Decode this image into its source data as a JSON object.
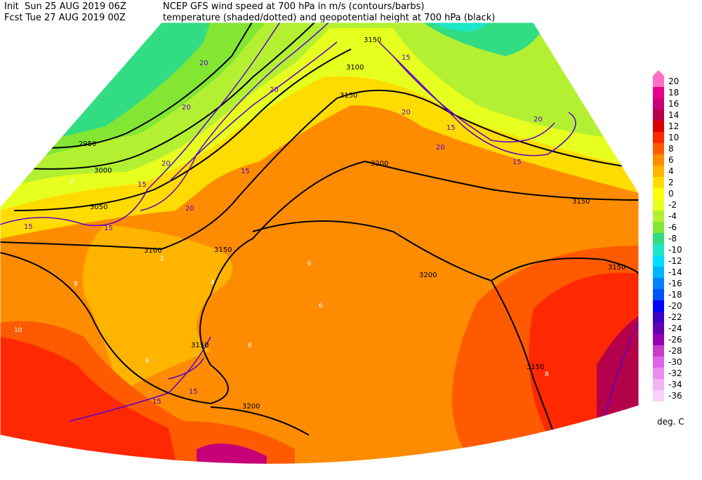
{
  "header": {
    "init": "Init  Sun 25 AUG 2019 06Z",
    "fcst": "Fcst Tue 27 AUG 2019 00Z",
    "line1": "NCEP GFS wind speed at 700 hPa in m/s (contours/barbs)",
    "line2": "temperature (shaded/dotted) and geopotential height at 700 hPa (black)"
  },
  "colorbar": {
    "labels": [
      20,
      18,
      16,
      14,
      12,
      10,
      8,
      6,
      4,
      2,
      0,
      -2,
      -4,
      -6,
      -8,
      -10,
      -12,
      -14,
      -16,
      -18,
      -20,
      -22,
      -24,
      -26,
      -28,
      -30,
      -32,
      -34,
      -36
    ],
    "colors": [
      "#ff6ec8",
      "#e6008c",
      "#c80078",
      "#b4004b",
      "#dc0000",
      "#ff2800",
      "#ff5a00",
      "#ff8c00",
      "#ffb400",
      "#ffdc00",
      "#ffff00",
      "#e6ff1e",
      "#b4f032",
      "#82e632",
      "#32dc82",
      "#1ee6c8",
      "#00dcff",
      "#00b4ff",
      "#0082ff",
      "#0050ff",
      "#0000ff",
      "#3c00c8",
      "#6400b4",
      "#9600b4",
      "#c83cc8",
      "#dc64e6",
      "#eb8cf0",
      "#f0b4f5",
      "#f8d2fa"
    ],
    "units": "deg. C"
  },
  "contour_labels": {
    "height": [
      2950,
      3000,
      3050,
      3100,
      3150,
      3200,
      3150,
      3100,
      3150,
      3200,
      3150,
      3150,
      3200,
      3150,
      3150
    ],
    "wind": [
      15,
      15,
      15,
      15,
      15,
      15,
      15,
      15,
      15,
      20,
      20,
      20,
      20,
      20,
      20,
      20,
      20
    ],
    "temperature": [
      -2,
      2,
      4,
      6,
      8,
      8,
      10,
      6,
      6,
      8
    ]
  }
}
